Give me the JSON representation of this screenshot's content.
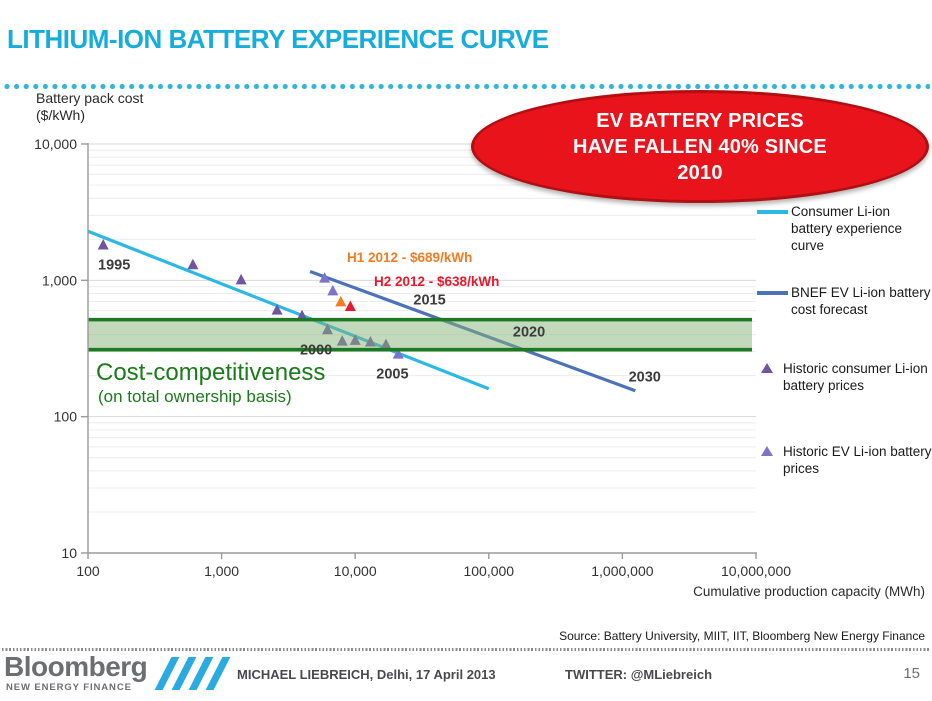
{
  "slide": {
    "title": "LITHIUM-ION BATTERY EXPERIENCE CURVE",
    "title_color": "#15ADDB",
    "accent_dotted_line_color": "#2FB5DE"
  },
  "callout": {
    "lines": [
      "EV BATTERY PRICES",
      "HAVE FALLEN 40% SINCE",
      "2010"
    ],
    "fill_color": "#E9131C",
    "border_color": "#B20F13",
    "text_color": "#FFFFFF"
  },
  "axis_titles": {
    "y_line1": "Battery pack cost",
    "y_line2": "($/kWh)",
    "x": "Cumulative production capacity (MWh)"
  },
  "chart_data": {
    "type": "line",
    "subtype": "log-log experience curve with scatter points",
    "xlabel": "Cumulative production capacity (MWh)",
    "ylabel": "Battery pack cost ($/kWh)",
    "xlim": [
      100,
      10000000
    ],
    "ylim": [
      10,
      10000
    ],
    "grid": "horizontal log minor+major gridlines",
    "legend_position": "right",
    "x_ticks": {
      "values": [
        100,
        1000,
        10000,
        100000,
        1000000,
        10000000
      ],
      "labels": [
        "100",
        "1,000",
        "10,000",
        "100,000",
        "1,000,000",
        "10,000,000"
      ]
    },
    "y_ticks": {
      "values": [
        10000,
        1000,
        100,
        10
      ],
      "labels": [
        "10,000",
        "1,000",
        "100",
        "10"
      ]
    },
    "series": [
      {
        "name": "Consumer Li-ion battery experience curve",
        "type": "line",
        "color": "#2CB8E4",
        "points": [
          [
            100,
            2290
          ],
          [
            100000,
            160
          ]
        ]
      },
      {
        "name": "BNEF EV Li-ion battery cost forecast",
        "type": "line",
        "color": "#4C72B8",
        "points": [
          [
            4600,
            1160
          ],
          [
            1250000,
            155
          ]
        ]
      },
      {
        "name": "Historic consumer Li-ion battery prices",
        "type": "triangle",
        "color": "#6F55A2",
        "points": [
          [
            130,
            1800
          ],
          [
            610,
            1290
          ],
          [
            1400,
            1000
          ],
          [
            2600,
            600
          ],
          [
            4000,
            545
          ],
          [
            6200,
            430
          ],
          [
            8000,
            355
          ],
          [
            10000,
            360
          ],
          [
            13000,
            350
          ],
          [
            17000,
            335
          ]
        ]
      },
      {
        "name": "Historic EV Li-ion battery prices",
        "type": "triangle",
        "color": "#7C74C8",
        "points": [
          [
            5900,
            1030
          ],
          [
            6800,
            830
          ],
          [
            21000,
            285
          ]
        ]
      },
      {
        "name": "H1 2012 price point",
        "type": "triangle",
        "color": "#F47B20",
        "points": [
          [
            7800,
            689
          ]
        ]
      },
      {
        "name": "H2 2012 price point",
        "type": "triangle",
        "color": "#E8192C",
        "points": [
          [
            9200,
            638
          ]
        ]
      }
    ],
    "band": {
      "label": "Cost-competitiveness (on total ownership basis)",
      "y_from": 310,
      "y_to": 515,
      "fill": "#86B377",
      "fill_opacity": 0.5,
      "border": "#1E7A22"
    },
    "year_labels": [
      {
        "text": "1995",
        "x": 157,
        "y": 1310
      },
      {
        "text": "2000",
        "x": 5100,
        "y": 310
      },
      {
        "text": "2005",
        "x": 19000,
        "y": 207
      },
      {
        "text": "2015",
        "x": 36000,
        "y": 725
      },
      {
        "text": "2020",
        "x": 200000,
        "y": 420
      },
      {
        "text": "2030",
        "x": 1470000,
        "y": 197
      }
    ],
    "point_annotations": [
      {
        "text": "H1 2012 - $689/kWh",
        "color": "#F47B20"
      },
      {
        "text": "H2 2012 - $638/kWh",
        "color": "#E8192C"
      }
    ]
  },
  "band_label": {
    "line1": "Cost-competitiveness",
    "line2": "(on total ownership basis)",
    "color": "#1B7A1B"
  },
  "legend": {
    "items": [
      {
        "swatch": "line",
        "color": "#2CB8E4",
        "label": "Consumer Li-ion battery experience curve"
      },
      {
        "swatch": "line",
        "color": "#4C72B8",
        "label": "BNEF EV Li-ion battery cost forecast"
      },
      {
        "swatch": "triangle",
        "color": "#6F55A2",
        "label": "Historic consumer Li-ion battery prices"
      },
      {
        "swatch": "triangle",
        "color": "#7C74C8",
        "label": "Historic EV Li-ion battery prices"
      }
    ]
  },
  "source": "Source: Battery University, MIIT, IIT, Bloomberg New Energy Finance",
  "footer": {
    "logo_main": "Bloomberg",
    "logo_sub": "NEW ENERGY FINANCE",
    "speaker": "MICHAEL LIEBREICH, Delhi, 17 April 2013",
    "twitter": "TWITTER: @MLiebreich",
    "page_number": "15"
  }
}
